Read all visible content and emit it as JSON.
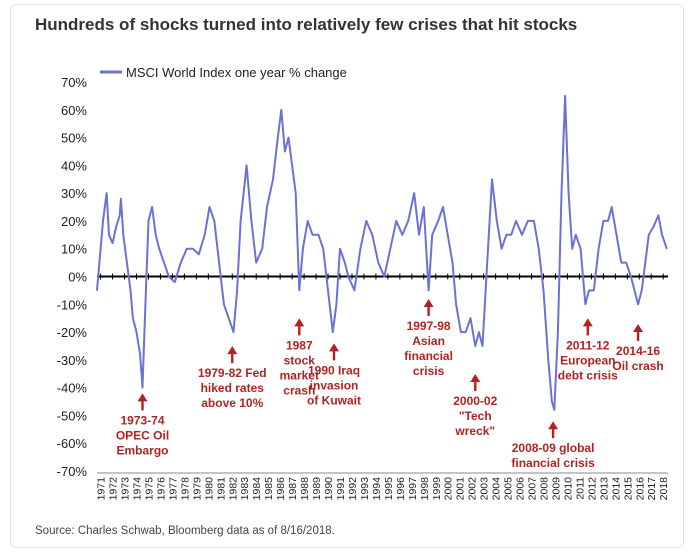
{
  "title": "Hundreds of shocks turned into relatively few crises that hit stocks",
  "source": "Source: Charles Schwab, Bloomberg data as of 8/16/2018.",
  "chart_data": {
    "type": "line",
    "title": "Hundreds of shocks turned into relatively few crises that hit stocks",
    "legend": "top-left",
    "grid": false,
    "xlim": [
      1971,
      2018.7
    ],
    "ylim": [
      -70,
      70
    ],
    "y_ticks": [
      "70%",
      "60%",
      "50%",
      "40%",
      "30%",
      "20%",
      "10%",
      "0%",
      "-10%",
      "-20%",
      "-30%",
      "-40%",
      "-50%",
      "-60%",
      "-70%"
    ],
    "x_ticks": [
      "1971",
      "1972",
      "1973",
      "1974",
      "1975",
      "1976",
      "1977",
      "1978",
      "1979",
      "1980",
      "1981",
      "1982",
      "1983",
      "1984",
      "1985",
      "1986",
      "1987",
      "1988",
      "1989",
      "1990",
      "1991",
      "1992",
      "1993",
      "1994",
      "1995",
      "1996",
      "1997",
      "1998",
      "1999",
      "2000",
      "2001",
      "2002",
      "2003",
      "2004",
      "2005",
      "2006",
      "2007",
      "2008",
      "2009",
      "2010",
      "2011",
      "2012",
      "2013",
      "2014",
      "2015",
      "2016",
      "2017",
      "2018"
    ],
    "series": [
      {
        "name": "MSCI World Index one year % change",
        "color": "#6b72d6",
        "points": [
          [
            1971.0,
            -5
          ],
          [
            1971.2,
            5
          ],
          [
            1971.5,
            20
          ],
          [
            1971.8,
            30
          ],
          [
            1972.0,
            15
          ],
          [
            1972.3,
            12
          ],
          [
            1972.6,
            18
          ],
          [
            1972.9,
            22
          ],
          [
            1973.0,
            28
          ],
          [
            1973.2,
            15
          ],
          [
            1973.5,
            5
          ],
          [
            1973.8,
            -5
          ],
          [
            1974.0,
            -15
          ],
          [
            1974.3,
            -20
          ],
          [
            1974.6,
            -28
          ],
          [
            1974.8,
            -40
          ],
          [
            1975.0,
            -15
          ],
          [
            1975.3,
            20
          ],
          [
            1975.6,
            25
          ],
          [
            1975.9,
            15
          ],
          [
            1976.2,
            10
          ],
          [
            1976.6,
            5
          ],
          [
            1977.0,
            0
          ],
          [
            1977.5,
            -2
          ],
          [
            1978.0,
            5
          ],
          [
            1978.5,
            10
          ],
          [
            1979.0,
            10
          ],
          [
            1979.5,
            8
          ],
          [
            1980.0,
            15
          ],
          [
            1980.4,
            25
          ],
          [
            1980.8,
            20
          ],
          [
            1981.2,
            5
          ],
          [
            1981.6,
            -10
          ],
          [
            1982.0,
            -15
          ],
          [
            1982.4,
            -20
          ],
          [
            1982.7,
            -5
          ],
          [
            1983.0,
            20
          ],
          [
            1983.5,
            40
          ],
          [
            1983.9,
            20
          ],
          [
            1984.3,
            5
          ],
          [
            1984.8,
            10
          ],
          [
            1985.2,
            25
          ],
          [
            1985.7,
            35
          ],
          [
            1986.1,
            50
          ],
          [
            1986.4,
            60
          ],
          [
            1986.7,
            45
          ],
          [
            1987.0,
            50
          ],
          [
            1987.3,
            40
          ],
          [
            1987.6,
            30
          ],
          [
            1987.9,
            -5
          ],
          [
            1988.2,
            10
          ],
          [
            1988.6,
            20
          ],
          [
            1989.0,
            15
          ],
          [
            1989.5,
            15
          ],
          [
            1989.9,
            10
          ],
          [
            1990.3,
            -5
          ],
          [
            1990.7,
            -20
          ],
          [
            1991.0,
            -10
          ],
          [
            1991.3,
            10
          ],
          [
            1991.7,
            5
          ],
          [
            1992.0,
            0
          ],
          [
            1992.5,
            -5
          ],
          [
            1993.0,
            10
          ],
          [
            1993.5,
            20
          ],
          [
            1994.0,
            15
          ],
          [
            1994.5,
            5
          ],
          [
            1995.0,
            0
          ],
          [
            1995.5,
            10
          ],
          [
            1996.0,
            20
          ],
          [
            1996.5,
            15
          ],
          [
            1997.0,
            20
          ],
          [
            1997.5,
            30
          ],
          [
            1997.9,
            15
          ],
          [
            1998.3,
            25
          ],
          [
            1998.7,
            -5
          ],
          [
            1999.0,
            15
          ],
          [
            1999.5,
            20
          ],
          [
            1999.9,
            25
          ],
          [
            2000.3,
            15
          ],
          [
            2000.7,
            5
          ],
          [
            2001.0,
            -10
          ],
          [
            2001.4,
            -20
          ],
          [
            2001.8,
            -20
          ],
          [
            2002.2,
            -15
          ],
          [
            2002.6,
            -25
          ],
          [
            2002.9,
            -20
          ],
          [
            2003.2,
            -25
          ],
          [
            2003.6,
            5
          ],
          [
            2004.0,
            35
          ],
          [
            2004.4,
            20
          ],
          [
            2004.8,
            10
          ],
          [
            2005.2,
            15
          ],
          [
            2005.6,
            15
          ],
          [
            2006.0,
            20
          ],
          [
            2006.5,
            15
          ],
          [
            2007.0,
            20
          ],
          [
            2007.5,
            20
          ],
          [
            2007.9,
            10
          ],
          [
            2008.3,
            -5
          ],
          [
            2008.7,
            -30
          ],
          [
            2009.0,
            -45
          ],
          [
            2009.2,
            -48
          ],
          [
            2009.5,
            -20
          ],
          [
            2009.8,
            30
          ],
          [
            2010.1,
            65
          ],
          [
            2010.4,
            30
          ],
          [
            2010.7,
            10
          ],
          [
            2011.0,
            15
          ],
          [
            2011.4,
            10
          ],
          [
            2011.8,
            -10
          ],
          [
            2012.1,
            -5
          ],
          [
            2012.5,
            -5
          ],
          [
            2012.9,
            10
          ],
          [
            2013.3,
            20
          ],
          [
            2013.7,
            20
          ],
          [
            2014.0,
            25
          ],
          [
            2014.4,
            15
          ],
          [
            2014.8,
            5
          ],
          [
            2015.2,
            5
          ],
          [
            2015.6,
            0
          ],
          [
            2015.9,
            -5
          ],
          [
            2016.2,
            -10
          ],
          [
            2016.5,
            -5
          ],
          [
            2016.8,
            5
          ],
          [
            2017.1,
            15
          ],
          [
            2017.5,
            18
          ],
          [
            2017.9,
            22
          ],
          [
            2018.2,
            15
          ],
          [
            2018.6,
            10
          ]
        ]
      }
    ],
    "annotations": [
      {
        "lines": [
          "1973-74",
          "OPEC Oil",
          "Embargo"
        ],
        "target_x": 1974.8,
        "target_y": -41,
        "arrow": "up"
      },
      {
        "lines": [
          "1979-82 Fed",
          "hiked rates",
          "above 10%"
        ],
        "target_x": 1982.3,
        "target_y": -24,
        "arrow": "up"
      },
      {
        "lines": [
          "1987",
          "stock",
          "market",
          "crash"
        ],
        "target_x": 1987.9,
        "target_y": -14,
        "arrow": "up"
      },
      {
        "lines": [
          "1990 Iraq",
          "invasion",
          "of Kuwait"
        ],
        "target_x": 1990.8,
        "target_y": -23,
        "arrow": "up"
      },
      {
        "lines": [
          "1997-98",
          "Asian",
          "financial",
          "crisis"
        ],
        "target_x": 1998.7,
        "target_y": -7,
        "arrow": "up"
      },
      {
        "lines": [
          "2000-02",
          "\"Tech",
          "wreck\""
        ],
        "target_x": 2002.6,
        "target_y": -34,
        "arrow": "up"
      },
      {
        "lines": [
          "2008-09 global",
          "financial crisis"
        ],
        "target_x": 2009.1,
        "target_y": -51,
        "arrow": "up"
      },
      {
        "lines": [
          "2011-12",
          "European",
          "debt crisis"
        ],
        "target_x": 2012.0,
        "target_y": -14,
        "arrow": "up"
      },
      {
        "lines": [
          "2014-16",
          "Oil crash"
        ],
        "target_x": 2016.2,
        "target_y": -16,
        "arrow": "up"
      }
    ]
  }
}
